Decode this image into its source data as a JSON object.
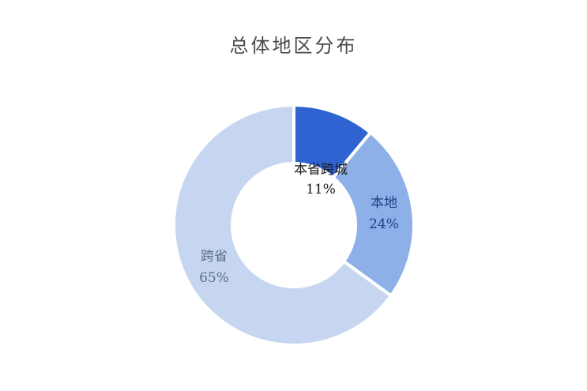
{
  "chart_data": {
    "type": "pie",
    "title": "总体地区分布",
    "categories": [
      "本省跨城",
      "本地",
      "跨省"
    ],
    "values": [
      11,
      24,
      65
    ],
    "value_labels": [
      "11%",
      "24%",
      "65%"
    ],
    "colors": [
      "#2f63d2",
      "#8eb0e8",
      "#c6d6f1"
    ],
    "label_colors": [
      "#1b1b1b",
      "#1f3f86",
      "#5e6f8c"
    ],
    "donut": true,
    "legend": "none"
  }
}
